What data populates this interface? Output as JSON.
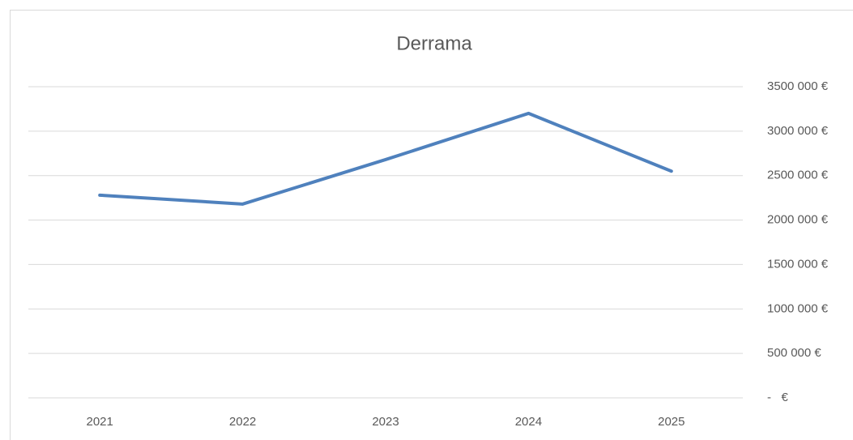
{
  "chart_data": {
    "type": "line",
    "title": "Derrama",
    "categories": [
      "2021",
      "2022",
      "2023",
      "2024",
      "2025"
    ],
    "series": [
      {
        "name": "Derrama",
        "color": "#4f81bd",
        "values": [
          2280000,
          2180000,
          2680000,
          3200000,
          2550000
        ]
      }
    ],
    "ylim": [
      0,
      3500000
    ],
    "yticks": [
      {
        "value": 0,
        "label": "-   €"
      },
      {
        "value": 500000,
        "label": "500 000 €"
      },
      {
        "value": 1000000,
        "label": "1000 000 €"
      },
      {
        "value": 1500000,
        "label": "1500 000 €"
      },
      {
        "value": 2000000,
        "label": "2000 000 €"
      },
      {
        "value": 2500000,
        "label": "2500 000 €"
      },
      {
        "value": 3000000,
        "label": "3000 000 €"
      },
      {
        "value": 3500000,
        "label": "3500 000 €"
      }
    ],
    "grid": true,
    "yaxis_side": "right"
  }
}
